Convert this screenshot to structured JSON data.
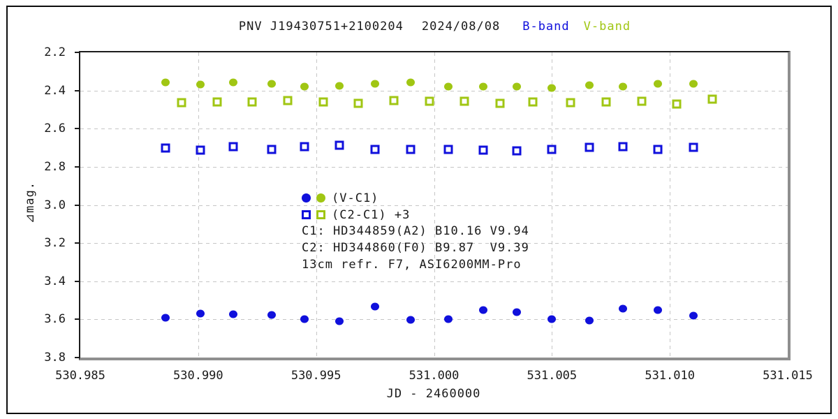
{
  "title": {
    "target": "PNV J19430751+2100204",
    "date": "2024/08/08",
    "b_band": "B-band",
    "v_band": "V-band"
  },
  "axis": {
    "y_label": "⊿mag.",
    "x_label": "JD - 2460000",
    "y_ticks": [
      "2.2",
      "2.4",
      "2.6",
      "2.8",
      "3.0",
      "3.2",
      "3.4",
      "3.6",
      "3.8"
    ],
    "x_ticks": [
      "530.985",
      "530.990",
      "530.995",
      "531.000",
      "531.005",
      "531.010",
      "531.015"
    ]
  },
  "legend": {
    "row_vc1": "(V-C1)",
    "row_c2c1": "(C2-C1) +3",
    "comp1": "C1: HD344859(A2) B10.16 V9.94",
    "comp2": "C2: HD344860(F0) B9.87  V9.39",
    "equipment": "13cm refr. F7, ASI6200MM-Pro"
  },
  "colors": {
    "b_band": "#1010dc",
    "v_band": "#a0c613",
    "grid": "#c6c6c6",
    "axis_dark": "#1c1c1c",
    "axis_shadow": "#8f8f8f",
    "text": "#1a1a1a"
  },
  "chart_data": {
    "type": "scatter",
    "title": "PNV J19430751+2100204 2024/08/08 B-band V-band",
    "xlabel": "JD - 2460000",
    "ylabel": "⊿mag.",
    "xlim": [
      530.985,
      531.015
    ],
    "ylim": [
      2.2,
      3.8
    ],
    "y_axis_direction": "inverted-magnitude (2.2 at top, 3.8 at bottom)",
    "grid": true,
    "legend_position": "inside center-left",
    "series": [
      {
        "name": "V-band (V-C1)",
        "marker": "filled-circle",
        "color": "#a0c613",
        "x": [
          530.9886,
          530.9901,
          530.9915,
          530.9931,
          530.9945,
          530.996,
          530.9975,
          530.999,
          531.0006,
          531.0021,
          531.0035,
          531.005,
          531.0066,
          531.008,
          531.0095,
          531.011
        ],
        "y": [
          2.356,
          2.368,
          2.356,
          2.366,
          2.381,
          2.375,
          2.365,
          2.359,
          2.381,
          2.378,
          2.378,
          2.388,
          2.373,
          2.381,
          2.366,
          2.364
        ]
      },
      {
        "name": "V-band (C2-C1)+3",
        "marker": "open-square",
        "color": "#a0c613",
        "x": [
          530.9893,
          530.9908,
          530.9923,
          530.9938,
          530.9953,
          530.9968,
          530.9983,
          530.9998,
          531.0013,
          531.0028,
          531.0042,
          531.0058,
          531.0073,
          531.0088,
          531.0103,
          531.0118
        ],
        "y": [
          2.464,
          2.459,
          2.459,
          2.454,
          2.459,
          2.466,
          2.452,
          2.456,
          2.456,
          2.466,
          2.461,
          2.464,
          2.459,
          2.456,
          2.472,
          2.446
        ]
      },
      {
        "name": "B-band (C2-C1)+3",
        "marker": "open-square",
        "color": "#1010dc",
        "x": [
          530.9886,
          530.9901,
          530.9915,
          530.9931,
          530.9945,
          530.996,
          530.9975,
          530.999,
          531.0006,
          531.0021,
          531.0035,
          531.005,
          531.0066,
          531.008,
          531.0095,
          531.011
        ],
        "y": [
          2.7,
          2.713,
          2.695,
          2.708,
          2.695,
          2.688,
          2.708,
          2.71,
          2.71,
          2.713,
          2.715,
          2.708,
          2.698,
          2.695,
          2.71,
          2.698
        ]
      },
      {
        "name": "B-band (V-C1)",
        "marker": "filled-circle",
        "color": "#1010dc",
        "x": [
          530.9886,
          530.9901,
          530.9915,
          530.9931,
          530.9945,
          530.996,
          530.9975,
          530.999,
          531.0006,
          531.0021,
          531.0035,
          531.005,
          531.0066,
          531.008,
          531.0095,
          531.011
        ],
        "y": [
          3.591,
          3.569,
          3.573,
          3.578,
          3.6,
          3.61,
          3.533,
          3.603,
          3.598,
          3.552,
          3.562,
          3.599,
          3.606,
          3.543,
          3.551,
          3.58
        ]
      }
    ]
  }
}
